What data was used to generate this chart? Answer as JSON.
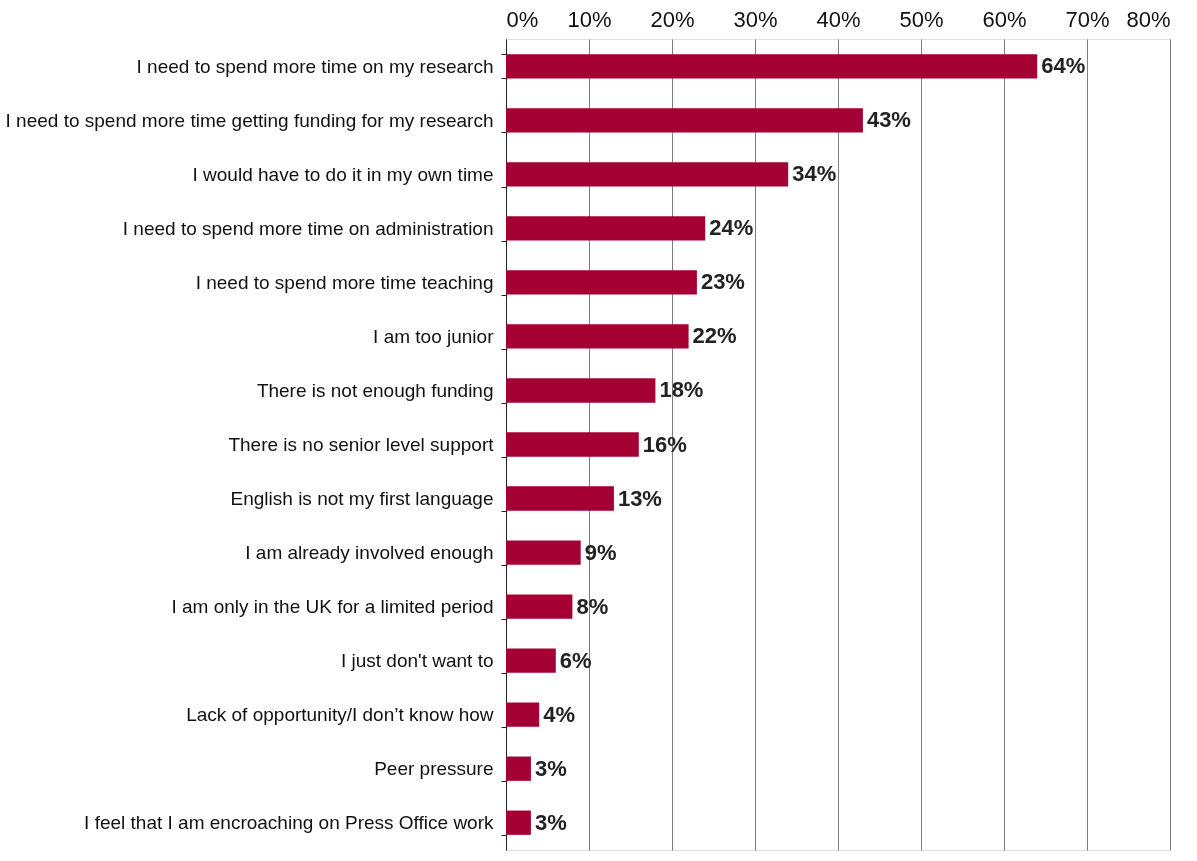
{
  "chart_data": {
    "type": "bar",
    "orientation": "horizontal",
    "categories": [
      "I need to spend more time on my research",
      "I need to spend more time getting funding for my research",
      "I would have to do it in my own time",
      "I need to spend more time on administration",
      "I need to spend more time teaching",
      "I am too junior",
      "There is not enough funding",
      "There is no senior level support",
      "English is not my first language",
      "I am already involved enough",
      "I am only in the UK for a limited period",
      "I just don't want to",
      "Lack of opportunity/I don’t know how",
      "Peer pressure",
      "I feel that I am encroaching on Press Office work"
    ],
    "values": [
      64,
      43,
      34,
      24,
      23,
      22,
      18,
      16,
      13,
      9,
      8,
      6,
      4,
      3,
      3
    ],
    "value_labels": [
      "64%",
      "43%",
      "34%",
      "24%",
      "23%",
      "22%",
      "18%",
      "16%",
      "13%",
      "9%",
      "8%",
      "6%",
      "4%",
      "3%",
      "3%"
    ],
    "color": "#a50034",
    "xlim": [
      0,
      80
    ],
    "xticks": [
      {
        "value": 0,
        "label": "0%"
      },
      {
        "value": 10,
        "label": "10%"
      },
      {
        "value": 20,
        "label": "20%"
      },
      {
        "value": 30,
        "label": "30%"
      },
      {
        "value": 40,
        "label": "40%"
      },
      {
        "value": 50,
        "label": "50%"
      },
      {
        "value": 60,
        "label": "60%"
      },
      {
        "value": 70,
        "label": "70%"
      },
      {
        "value": 80,
        "label": "80%"
      }
    ],
    "grid": "x"
  }
}
